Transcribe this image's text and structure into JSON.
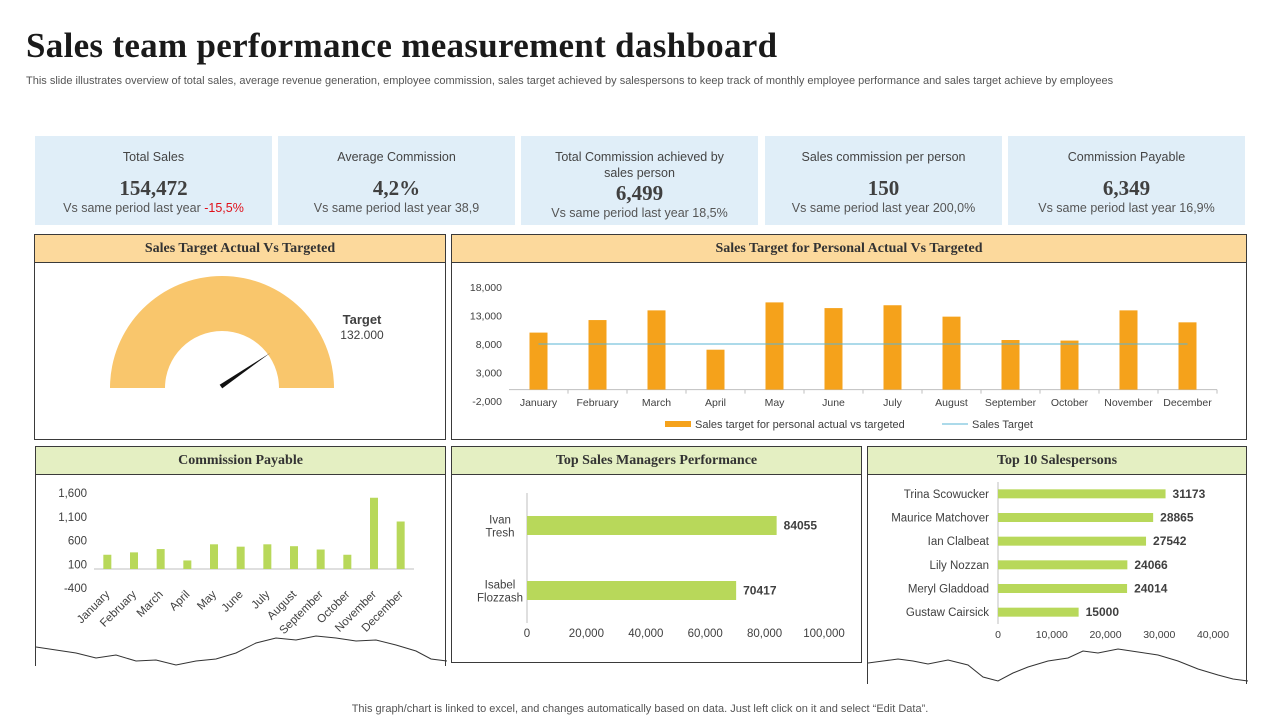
{
  "title": "Sales team performance measurement dashboard",
  "subtitle": "This slide illustrates overview of total sales, average revenue generation, employee commission, sales target achieved by salespersons to keep track of monthly employee performance and sales target achieve by employees",
  "kpis": [
    {
      "label": "Total Sales",
      "value": "154,472",
      "compare_text": "Vs same period last year",
      "delta": "-15,5%"
    },
    {
      "label": "Average Commission",
      "value": "4,2%",
      "compare_text": "Vs same period last year",
      "delta": "38,9"
    },
    {
      "label": "Total Commission achieved by sales person",
      "value": "6,499",
      "compare_text": "Vs same period last year",
      "delta": "18,5%"
    },
    {
      "label": "Sales commission per person",
      "value": "150",
      "compare_text": "Vs same period last year",
      "delta": "200,0%"
    },
    {
      "label": "Commission Payable",
      "value": "6,349",
      "compare_text": "Vs same period last year",
      "delta": "16,9%"
    }
  ],
  "panels": {
    "gauge_title": "Sales Target Actual Vs Targeted",
    "personal_title": "Sales Target for Personal Actual Vs Targeted",
    "commission_title": "Commission Payable",
    "managers_title": "Top Sales Managers Performance",
    "salespersons_title": "Top 10 Salespersons"
  },
  "colors": {
    "kpi_bg": "#e0eef8",
    "gauge_fill": "#f9c66c",
    "bar_orange": "#f5a21b",
    "target_line": "#5ab4d6",
    "bar_green": "#b8d85a",
    "negative": "#e0101a"
  },
  "footer": "This graph/chart is linked to excel,  and changes automatically based on data. Just left click on it and select “Edit Data”.",
  "chart_data": [
    {
      "id": "gauge",
      "type": "gauge",
      "title": "Sales Target Actual Vs Targeted",
      "target_label": "Target",
      "target_value_text": "132.000",
      "needle_fraction": 0.8
    },
    {
      "id": "personal",
      "type": "bar",
      "title": "Sales Target for Personal Actual Vs Targeted",
      "categories": [
        "January",
        "February",
        "March",
        "April",
        "May",
        "June",
        "July",
        "August",
        "September",
        "October",
        "November",
        "December"
      ],
      "series": [
        {
          "name": "Sales target for personal actual vs targeted",
          "type": "bar",
          "values": [
            10000,
            12200,
            13900,
            7000,
            15300,
            14300,
            14800,
            12800,
            8700,
            8600,
            13900,
            11800
          ]
        },
        {
          "name": "Sales Target",
          "type": "line",
          "values": [
            8000,
            8000,
            8000,
            8000,
            8000,
            8000,
            8000,
            8000,
            8000,
            8000,
            8000,
            8000
          ]
        }
      ],
      "ylim": [
        -2000,
        18000
      ],
      "yticks": [
        -2000,
        3000,
        8000,
        13000,
        18000
      ],
      "ytick_labels": [
        "-2,000",
        "3,000",
        "8,000",
        "13,000",
        "18,000"
      ]
    },
    {
      "id": "commission",
      "type": "bar",
      "title": "Commission Payable",
      "categories": [
        "January",
        "February",
        "March",
        "April",
        "May",
        "June",
        "July",
        "August",
        "September",
        "October",
        "November",
        "December"
      ],
      "values": [
        300,
        350,
        420,
        180,
        520,
        470,
        520,
        480,
        410,
        300,
        1500,
        1000
      ],
      "ylim": [
        -400,
        1600
      ],
      "yticks": [
        -400,
        100,
        600,
        1100,
        1600
      ],
      "ytick_labels": [
        "-400",
        "100",
        "600",
        "1,100",
        "1,600"
      ]
    },
    {
      "id": "managers",
      "type": "bar",
      "orientation": "horizontal",
      "title": "Top Sales Managers Performance",
      "categories": [
        "Ivan Tresh",
        "Isabel Flozzash"
      ],
      "values": [
        84055,
        70417
      ],
      "xlim": [
        0,
        100000
      ],
      "xticks": [
        0,
        20000,
        40000,
        60000,
        80000,
        100000
      ],
      "xtick_labels": [
        "0",
        "20,000",
        "40,000",
        "60,000",
        "80,000",
        "100,000"
      ]
    },
    {
      "id": "salespersons",
      "type": "bar",
      "orientation": "horizontal",
      "title": "Top 10 Salespersons",
      "categories": [
        "Trina Scowucker",
        "Maurice Matchover",
        "Ian Clalbeat",
        "Lily Nozzan",
        "Meryl Gladdoad",
        "Gustaw Cairsick"
      ],
      "values": [
        31173,
        28865,
        27542,
        24066,
        24014,
        15000
      ],
      "xlim": [
        0,
        40000
      ],
      "xticks": [
        0,
        10000,
        20000,
        30000,
        40000
      ],
      "xtick_labels": [
        "0",
        "10,000",
        "20,000",
        "30,000",
        "40,000"
      ]
    }
  ]
}
